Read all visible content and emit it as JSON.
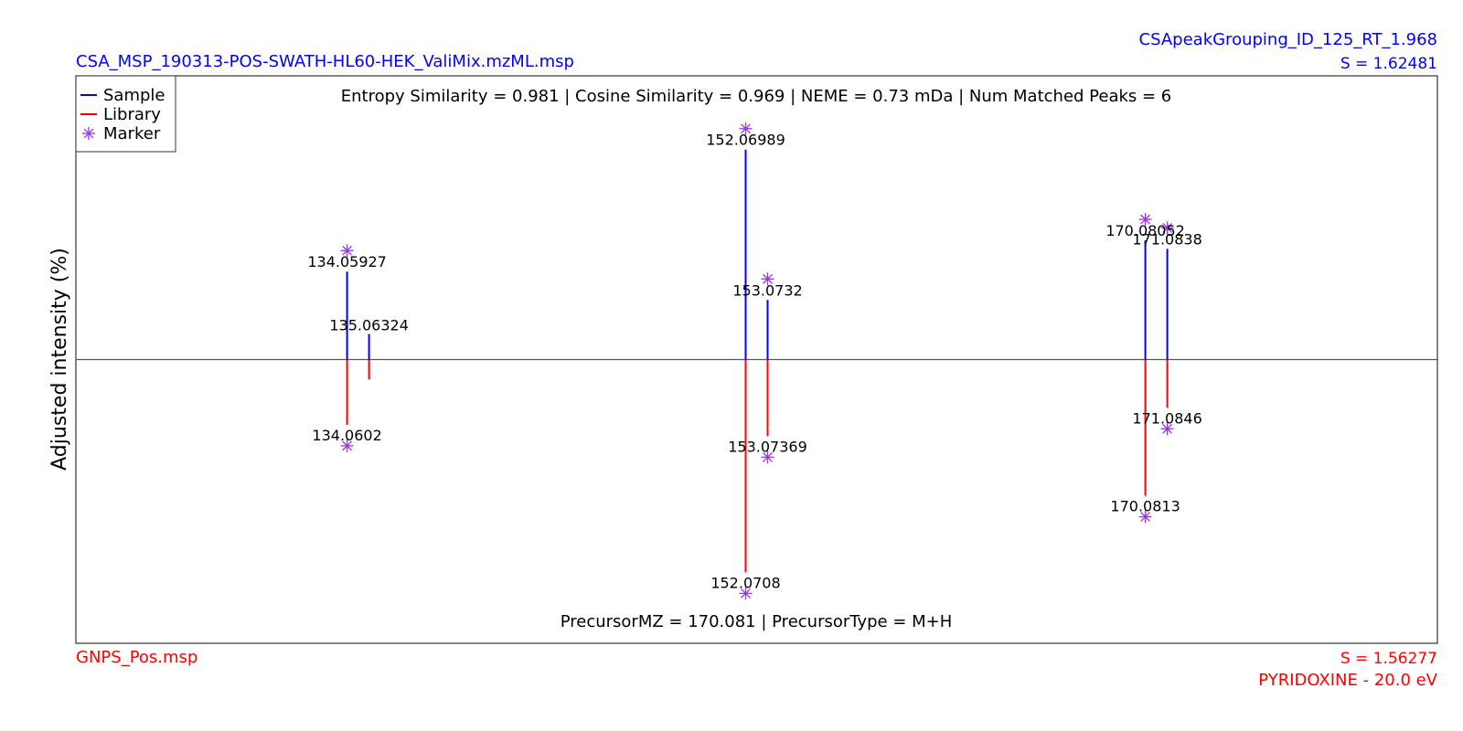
{
  "header": {
    "sample_file": "CSA_MSP_190313-POS-SWATH-HL60-HEK_ValiMix.mzML.msp",
    "sample_id": "CSApeakGrouping_ID_125_RT_1.968",
    "sample_score": "S = 1.62481",
    "library_file": "GNPS_Pos.msp",
    "library_score": "S = 1.56277",
    "library_name": "PYRIDOXINE - 20.0 eV"
  },
  "colors": {
    "sample": "#0000ff",
    "library": "#ff0000",
    "marker": "#9933ee",
    "axis": "#333333"
  },
  "chart_data": {
    "type": "mirror-stem",
    "ylabel": "Adjusted intensity (%)",
    "xlim": [
      121.5,
      183.5
    ],
    "ylim": [
      -1.0,
      1.0
    ],
    "grid": false,
    "legend_position": "top-left",
    "legend": [
      {
        "label": "Sample",
        "kind": "line",
        "color": "#0000ff"
      },
      {
        "label": "Library",
        "kind": "line",
        "color": "#ff0000"
      },
      {
        "label": "Marker",
        "kind": "asterisk",
        "color": "#9933ee"
      }
    ],
    "stats_text": "Entropy Similarity = 0.981 | Cosine Similarity = 0.969 | NEME = 0.73 mDa | Num Matched Peaks = 6",
    "precursor_text": "PrecursorMZ = 170.081 | PrecursorType = M+H",
    "sample_peaks": [
      {
        "mz": 133.85,
        "intensity": 0.31,
        "label": "134.05927",
        "marker": true
      },
      {
        "mz": 134.85,
        "intensity": 0.09,
        "label": "135.06324",
        "marker": false
      },
      {
        "mz": 152.0,
        "intensity": 0.74,
        "label": "152.06989",
        "marker": true
      },
      {
        "mz": 153.0,
        "intensity": 0.21,
        "label": "153.0732",
        "marker": true
      },
      {
        "mz": 170.2,
        "intensity": 0.42,
        "label": "170.08052",
        "marker": true
      },
      {
        "mz": 171.2,
        "intensity": 0.39,
        "label": "171.0838",
        "marker": true
      }
    ],
    "library_peaks": [
      {
        "mz": 133.85,
        "intensity": 0.23,
        "label": "134.0602",
        "marker": true
      },
      {
        "mz": 134.85,
        "intensity": 0.07,
        "label": "",
        "marker": false
      },
      {
        "mz": 152.0,
        "intensity": 0.75,
        "label": "152.0708",
        "marker": true
      },
      {
        "mz": 153.0,
        "intensity": 0.27,
        "label": "153.07369",
        "marker": true
      },
      {
        "mz": 170.2,
        "intensity": 0.48,
        "label": "170.0813",
        "marker": true
      },
      {
        "mz": 171.2,
        "intensity": 0.17,
        "label": "171.0846",
        "marker": true
      }
    ]
  }
}
